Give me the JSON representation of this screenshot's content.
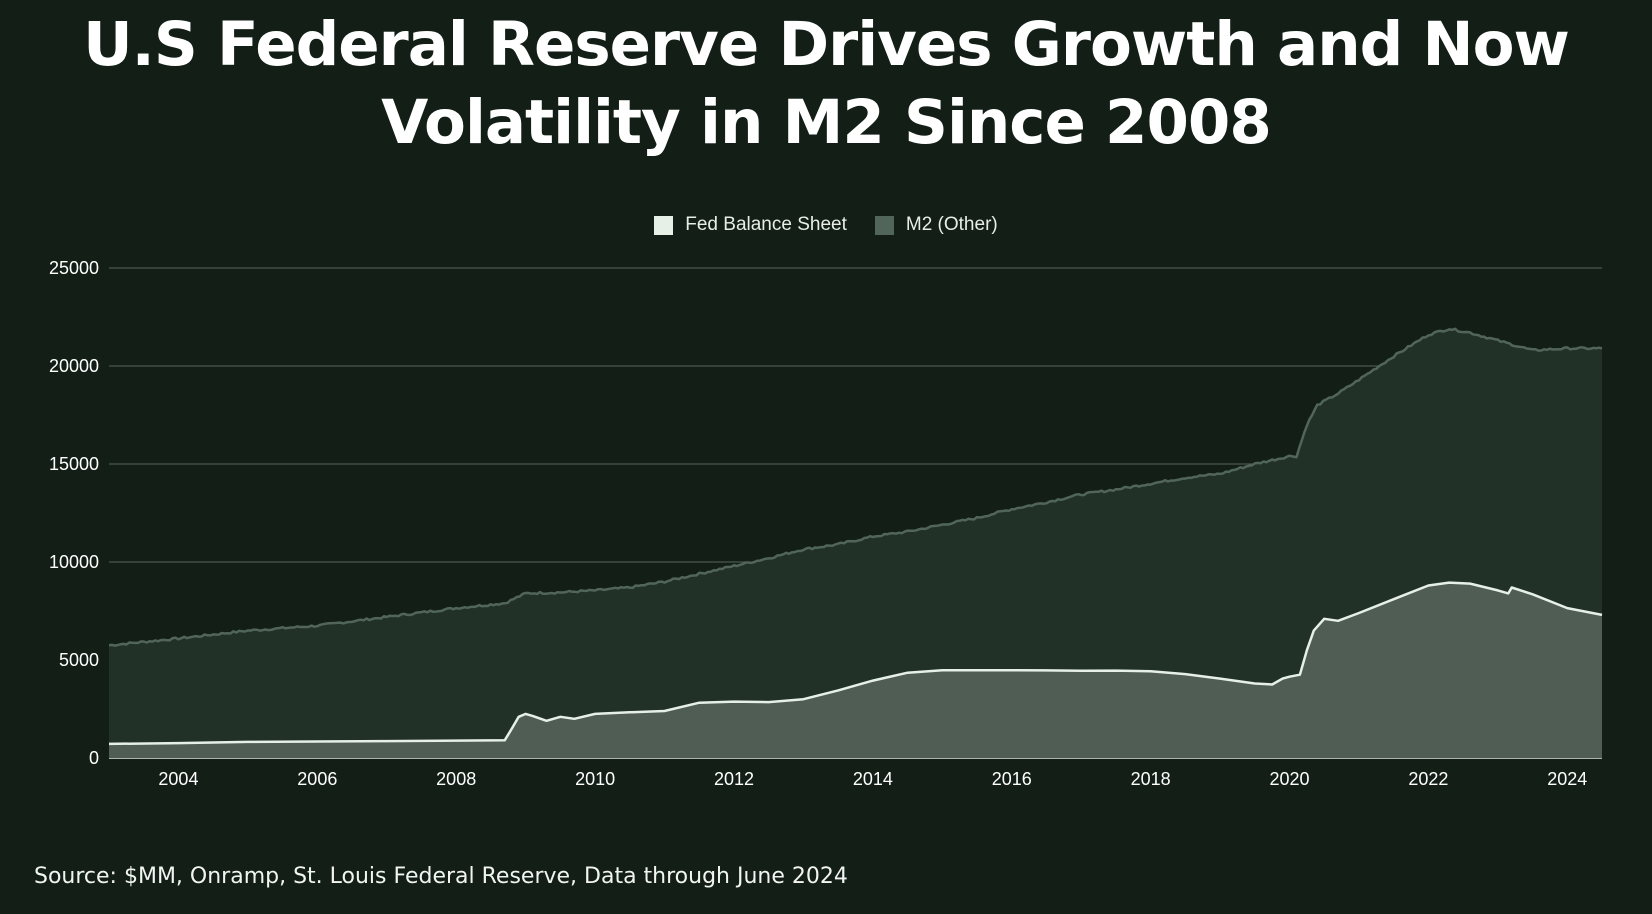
{
  "title_lines": [
    "U.S Federal Reserve Drives Growth and Now",
    "Volatility in M2 Since 2008"
  ],
  "source": "Source: $MM, Onramp, St. Louis Federal Reserve, Data through June 2024",
  "colors": {
    "background": "#121e16",
    "fed_fill": "#4f5d54",
    "fed_line": "#e6f0e7",
    "m2_fill": "#223128",
    "m2_line": "#52655a",
    "gridline": "#56665b"
  },
  "chart_data": {
    "type": "area",
    "legend": [
      "Fed Balance Sheet",
      "M2 (Other)"
    ],
    "legend_position": "top",
    "grid": true,
    "x_range": [
      2003.0,
      2024.5
    ],
    "ylim": [
      0,
      25000
    ],
    "y_ticks": [
      "0",
      "5000",
      "10000",
      "15000",
      "20000",
      "25000"
    ],
    "x_ticks": [
      "2004",
      "2006",
      "2008",
      "2010",
      "2012",
      "2014",
      "2016",
      "2018",
      "2020",
      "2022",
      "2024"
    ],
    "series": [
      {
        "name": "Fed Balance Sheet",
        "points": [
          [
            2003.0,
            720
          ],
          [
            2004.0,
            760
          ],
          [
            2005.0,
            820
          ],
          [
            2006.0,
            840
          ],
          [
            2007.0,
            860
          ],
          [
            2008.0,
            890
          ],
          [
            2008.7,
            910
          ],
          [
            2008.8,
            1500
          ],
          [
            2008.9,
            2100
          ],
          [
            2009.0,
            2250
          ],
          [
            2009.1,
            2150
          ],
          [
            2009.3,
            1900
          ],
          [
            2009.5,
            2100
          ],
          [
            2009.7,
            2000
          ],
          [
            2010.0,
            2250
          ],
          [
            2010.5,
            2330
          ],
          [
            2011.0,
            2400
          ],
          [
            2011.5,
            2820
          ],
          [
            2012.0,
            2880
          ],
          [
            2012.5,
            2850
          ],
          [
            2013.0,
            3000
          ],
          [
            2013.5,
            3450
          ],
          [
            2014.0,
            3950
          ],
          [
            2014.5,
            4350
          ],
          [
            2015.0,
            4480
          ],
          [
            2015.5,
            4480
          ],
          [
            2016.0,
            4480
          ],
          [
            2016.5,
            4470
          ],
          [
            2017.0,
            4450
          ],
          [
            2017.5,
            4460
          ],
          [
            2018.0,
            4430
          ],
          [
            2018.5,
            4280
          ],
          [
            2019.0,
            4050
          ],
          [
            2019.5,
            3800
          ],
          [
            2019.75,
            3750
          ],
          [
            2019.9,
            4050
          ],
          [
            2020.0,
            4150
          ],
          [
            2020.15,
            4250
          ],
          [
            2020.25,
            5500
          ],
          [
            2020.35,
            6500
          ],
          [
            2020.5,
            7100
          ],
          [
            2020.7,
            7000
          ],
          [
            2021.0,
            7400
          ],
          [
            2021.5,
            8100
          ],
          [
            2022.0,
            8800
          ],
          [
            2022.3,
            8950
          ],
          [
            2022.6,
            8900
          ],
          [
            2023.0,
            8550
          ],
          [
            2023.15,
            8400
          ],
          [
            2023.2,
            8700
          ],
          [
            2023.5,
            8350
          ],
          [
            2024.0,
            7650
          ],
          [
            2024.5,
            7300
          ]
        ]
      },
      {
        "name": "M2 (Other)",
        "points": [
          [
            2003.0,
            5750
          ],
          [
            2004.0,
            6100
          ],
          [
            2005.0,
            6500
          ],
          [
            2006.0,
            6750
          ],
          [
            2007.0,
            7200
          ],
          [
            2008.0,
            7650
          ],
          [
            2008.7,
            7900
          ],
          [
            2009.0,
            8400
          ],
          [
            2009.5,
            8450
          ],
          [
            2010.0,
            8550
          ],
          [
            2010.5,
            8700
          ],
          [
            2011.0,
            9000
          ],
          [
            2011.5,
            9400
          ],
          [
            2012.0,
            9800
          ],
          [
            2012.5,
            10200
          ],
          [
            2013.0,
            10650
          ],
          [
            2013.5,
            10900
          ],
          [
            2014.0,
            11300
          ],
          [
            2014.5,
            11550
          ],
          [
            2015.0,
            11900
          ],
          [
            2015.5,
            12250
          ],
          [
            2016.0,
            12700
          ],
          [
            2016.5,
            13050
          ],
          [
            2017.0,
            13450
          ],
          [
            2017.5,
            13700
          ],
          [
            2018.0,
            14000
          ],
          [
            2018.5,
            14300
          ],
          [
            2019.0,
            14500
          ],
          [
            2019.5,
            15000
          ],
          [
            2020.0,
            15400
          ],
          [
            2020.1,
            15400
          ],
          [
            2020.25,
            17000
          ],
          [
            2020.4,
            18000
          ],
          [
            2020.7,
            18600
          ],
          [
            2021.0,
            19300
          ],
          [
            2021.5,
            20500
          ],
          [
            2022.0,
            21600
          ],
          [
            2022.3,
            21900
          ],
          [
            2022.6,
            21700
          ],
          [
            2023.0,
            21300
          ],
          [
            2023.5,
            20800
          ],
          [
            2024.0,
            20900
          ],
          [
            2024.5,
            20900
          ]
        ]
      }
    ]
  }
}
